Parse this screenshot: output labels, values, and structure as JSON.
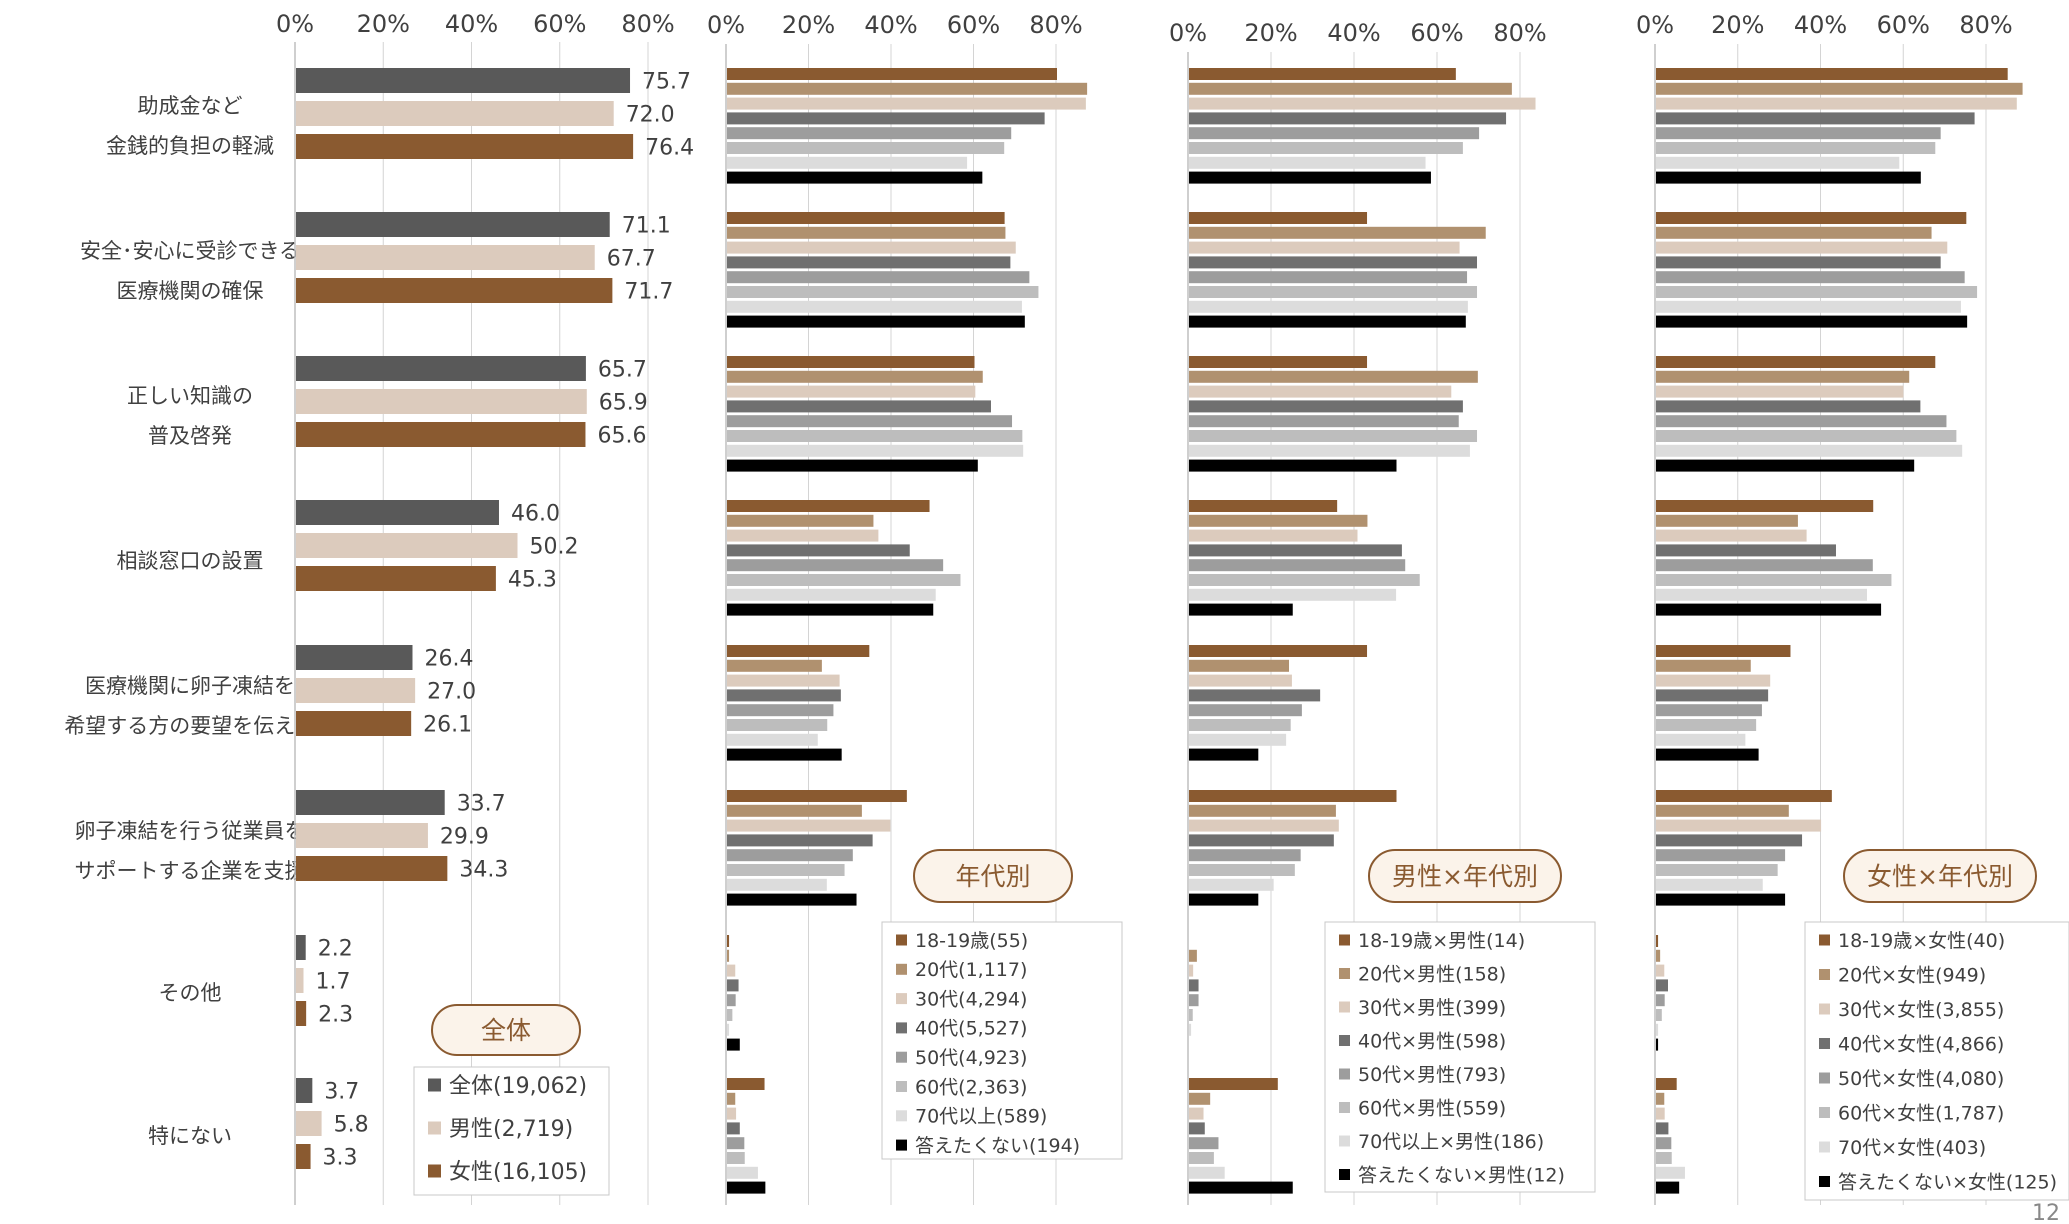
{
  "page_number": "12",
  "colors": {
    "all": "#595959",
    "male": "#dccbbd",
    "female": "#8a5a30",
    "age_1819": "#8a5a30",
    "age_20": "#b0916f",
    "age_30": "#dccbbd",
    "age_40": "#707070",
    "age_50": "#9d9d9d",
    "age_60": "#bdbdbd",
    "age_70": "#dcdcdc",
    "no_answer": "#000000",
    "badge_border": "#8a5a30",
    "badge_bg": "#fbf3ea",
    "badge_text": "#8a5a30",
    "gridline": "#d4d4d4"
  },
  "categories": [
    {
      "line1": "助成金など",
      "line2": "金銭的負担の軽減"
    },
    {
      "line1": "安全･安心に受診できる",
      "line2": "医療機関の確保"
    },
    {
      "line1": "正しい知識の",
      "line2": "普及啓発"
    },
    {
      "line1": "相談窓口の設置",
      "line2": ""
    },
    {
      "line1": "医療機関に卵子凍結を",
      "line2": "希望する方の要望を伝える"
    },
    {
      "line1": "卵子凍結を行う従業員を",
      "line2": "サポートする企業を支援"
    },
    {
      "line1": "その他",
      "line2": ""
    },
    {
      "line1": "特にない",
      "line2": ""
    }
  ],
  "chart_data": [
    {
      "type": "bar",
      "orientation": "horizontal",
      "badge": "全体",
      "x_ticks": [
        "0%",
        "20%",
        "40%",
        "60%",
        "80%"
      ],
      "xlim": [
        0,
        85
      ],
      "data_labels": true,
      "legend": [
        {
          "label": "全体(19,062)",
          "color": "#595959"
        },
        {
          "label": "男性(2,719)",
          "color": "#dccbbd"
        },
        {
          "label": "女性(16,105)",
          "color": "#8a5a30"
        }
      ],
      "series": [
        {
          "label": "全体(19,062)",
          "color": "#595959",
          "values": [
            75.7,
            71.1,
            65.7,
            46.0,
            26.4,
            33.7,
            2.2,
            3.7
          ],
          "labels": [
            "75.7",
            "71.1",
            "65.7",
            "46.0",
            "26.4",
            "33.7",
            "2.2",
            "3.7"
          ]
        },
        {
          "label": "男性(2,719)",
          "color": "#dccbbd",
          "values": [
            72.0,
            67.7,
            65.9,
            50.2,
            27.0,
            29.9,
            1.7,
            5.8
          ],
          "labels": [
            "72.0",
            "67.7",
            "65.9",
            "50.2",
            "27.0",
            "29.9",
            "1.7",
            "5.8"
          ]
        },
        {
          "label": "女性(16,105)",
          "color": "#8a5a30",
          "values": [
            76.4,
            71.7,
            65.6,
            45.3,
            26.1,
            34.3,
            2.3,
            3.3
          ],
          "labels": [
            "76.4",
            "71.7",
            "65.6",
            "45.3",
            "26.1",
            "34.3",
            "2.3",
            "3.3"
          ]
        }
      ]
    },
    {
      "type": "bar",
      "orientation": "horizontal",
      "badge": "年代別",
      "x_ticks": [
        "0%",
        "20%",
        "40%",
        "60%",
        "80%"
      ],
      "xlim": [
        0,
        90
      ],
      "data_labels": false,
      "legend": [
        {
          "label": "18-19歳(55)",
          "color": "#8a5a30"
        },
        {
          "label": "20代(1,117)",
          "color": "#b0916f"
        },
        {
          "label": "30代(4,294)",
          "color": "#dccbbd"
        },
        {
          "label": "40代(5,527)",
          "color": "#707070"
        },
        {
          "label": "50代(4,923)",
          "color": "#9d9d9d"
        },
        {
          "label": "60代(2,363)",
          "color": "#bdbdbd"
        },
        {
          "label": "70代以上(589)",
          "color": "#dcdcdc"
        },
        {
          "label": "答えたくない(194)",
          "color": "#000000"
        }
      ],
      "series": [
        {
          "label": "18-19歳(55)",
          "color": "#8a5a30",
          "values": [
            80,
            67.3,
            60,
            49.1,
            34.5,
            43.6,
            0.5,
            9.1
          ]
        },
        {
          "label": "20代(1,117)",
          "color": "#b0916f",
          "values": [
            87.3,
            67.5,
            62,
            35.5,
            23,
            32.7,
            0.5,
            2
          ]
        },
        {
          "label": "30代(4,294)",
          "color": "#dccbbd",
          "values": [
            87,
            70,
            60.2,
            36.7,
            27.3,
            39.6,
            2,
            2.2
          ]
        },
        {
          "label": "40代(5,527)",
          "color": "#707070",
          "values": [
            77,
            68.7,
            64,
            44.3,
            27.6,
            35.3,
            2.8,
            3.1
          ]
        },
        {
          "label": "50代(4,923)",
          "color": "#9d9d9d",
          "values": [
            68.9,
            73.3,
            69.1,
            52.4,
            25.8,
            30.5,
            2.1,
            4.2
          ]
        },
        {
          "label": "60代(2,363)",
          "color": "#bdbdbd",
          "values": [
            67.2,
            75.5,
            71.6,
            56.6,
            24.3,
            28.5,
            1.3,
            4.3
          ]
        },
        {
          "label": "70代以上(589)",
          "color": "#dcdcdc",
          "values": [
            58.2,
            71.5,
            71.8,
            50.6,
            22,
            24.2,
            0.5,
            7.5
          ]
        },
        {
          "label": "答えたくない(194)",
          "color": "#000000",
          "values": [
            61.9,
            72.2,
            60.8,
            50,
            27.8,
            31.4,
            3.1,
            9.3
          ]
        }
      ]
    },
    {
      "type": "bar",
      "orientation": "horizontal",
      "badge": "男性×年代別",
      "x_ticks": [
        "0%",
        "20%",
        "40%",
        "60%",
        "80%"
      ],
      "xlim": [
        0,
        88
      ],
      "data_labels": false,
      "legend": [
        {
          "label": "18-19歳×男性(14)",
          "color": "#8a5a30"
        },
        {
          "label": "20代×男性(158)",
          "color": "#b0916f"
        },
        {
          "label": "30代×男性(399)",
          "color": "#dccbbd"
        },
        {
          "label": "40代×男性(598)",
          "color": "#707070"
        },
        {
          "label": "50代×男性(793)",
          "color": "#9d9d9d"
        },
        {
          "label": "60代×男性(559)",
          "color": "#bdbdbd"
        },
        {
          "label": "70代以上×男性(186)",
          "color": "#dcdcdc"
        },
        {
          "label": "答えたくない×男性(12)",
          "color": "#000000"
        }
      ],
      "series": [
        {
          "label": "18-19歳×男性(14)",
          "color": "#8a5a30",
          "values": [
            64.3,
            42.9,
            42.9,
            35.7,
            42.9,
            50,
            0,
            21.4
          ]
        },
        {
          "label": "20代×男性(158)",
          "color": "#b0916f",
          "values": [
            77.8,
            71.5,
            69.6,
            43,
            24.1,
            35.4,
            1.9,
            5.1
          ]
        },
        {
          "label": "30代×男性(399)",
          "color": "#dccbbd",
          "values": [
            83.5,
            65.2,
            63.2,
            40.6,
            24.8,
            36.1,
            1,
            3.5
          ]
        },
        {
          "label": "40代×男性(598)",
          "color": "#707070",
          "values": [
            76.4,
            69.4,
            66,
            51.3,
            31.6,
            34.9,
            2.3,
            3.8
          ]
        },
        {
          "label": "50代×男性(793)",
          "color": "#9d9d9d",
          "values": [
            69.9,
            67,
            65,
            52.1,
            27.2,
            26.9,
            2.3,
            7.1
          ]
        },
        {
          "label": "60代×男性(559)",
          "color": "#bdbdbd",
          "values": [
            66,
            69.4,
            69.4,
            55.6,
            24.5,
            25.5,
            0.9,
            6
          ]
        },
        {
          "label": "70代以上×男性(186)",
          "color": "#dcdcdc",
          "values": [
            57,
            67.2,
            67.7,
            49.9,
            23.4,
            20.4,
            0.5,
            8.6
          ]
        },
        {
          "label": "答えたくない×男性(12)",
          "color": "#000000",
          "values": [
            58.3,
            66.7,
            50,
            25,
            16.7,
            16.7,
            0,
            25
          ]
        }
      ]
    },
    {
      "type": "bar",
      "orientation": "horizontal",
      "badge": "女性×年代別",
      "x_ticks": [
        "0%",
        "20%",
        "40%",
        "60%",
        "80%"
      ],
      "xlim": [
        0,
        88
      ],
      "data_labels": false,
      "legend": [
        {
          "label": "18-19歳×女性(40)",
          "color": "#8a5a30"
        },
        {
          "label": "20代×女性(949)",
          "color": "#b0916f"
        },
        {
          "label": "30代×女性(3,855)",
          "color": "#dccbbd"
        },
        {
          "label": "40代×女性(4,866)",
          "color": "#707070"
        },
        {
          "label": "50代×女性(4,080)",
          "color": "#9d9d9d"
        },
        {
          "label": "60代×女性(1,787)",
          "color": "#bdbdbd"
        },
        {
          "label": "70代×女性(403)",
          "color": "#dcdcdc"
        },
        {
          "label": "答えたくない×女性(125)",
          "color": "#000000"
        }
      ],
      "series": [
        {
          "label": "18-19歳×女性(40)",
          "color": "#8a5a30",
          "values": [
            85,
            75,
            67.5,
            52.5,
            32.5,
            42.5,
            0.5,
            5
          ]
        },
        {
          "label": "20代×女性(949)",
          "color": "#b0916f",
          "values": [
            88.6,
            66.6,
            61.2,
            34.3,
            22.9,
            32.1,
            1,
            2
          ]
        },
        {
          "label": "30代×女性(3,855)",
          "color": "#dccbbd",
          "values": [
            87.2,
            70.4,
            59.8,
            36.4,
            27.6,
            39.9,
            2,
            2.1
          ]
        },
        {
          "label": "40代×女性(4,866)",
          "color": "#707070",
          "values": [
            77,
            68.8,
            63.9,
            43.5,
            27.1,
            35.3,
            2.9,
            3
          ]
        },
        {
          "label": "50代×女性(4,080)",
          "color": "#9d9d9d",
          "values": [
            68.8,
            74.6,
            70.2,
            52.4,
            25.6,
            31.2,
            2.1,
            3.7
          ]
        },
        {
          "label": "60代×女性(1,787)",
          "color": "#bdbdbd",
          "values": [
            67.5,
            77.6,
            72.6,
            56.9,
            24.2,
            29.4,
            1.4,
            3.8
          ]
        },
        {
          "label": "70代×女性(403)",
          "color": "#dcdcdc",
          "values": [
            58.8,
            73.7,
            74,
            51,
            21.6,
            25.8,
            0.5,
            7
          ]
        },
        {
          "label": "答えたくない×女性(125)",
          "color": "#000000",
          "values": [
            64,
            75.2,
            62.4,
            54.4,
            24.8,
            31.2,
            0.5,
            5.6
          ]
        }
      ]
    }
  ]
}
